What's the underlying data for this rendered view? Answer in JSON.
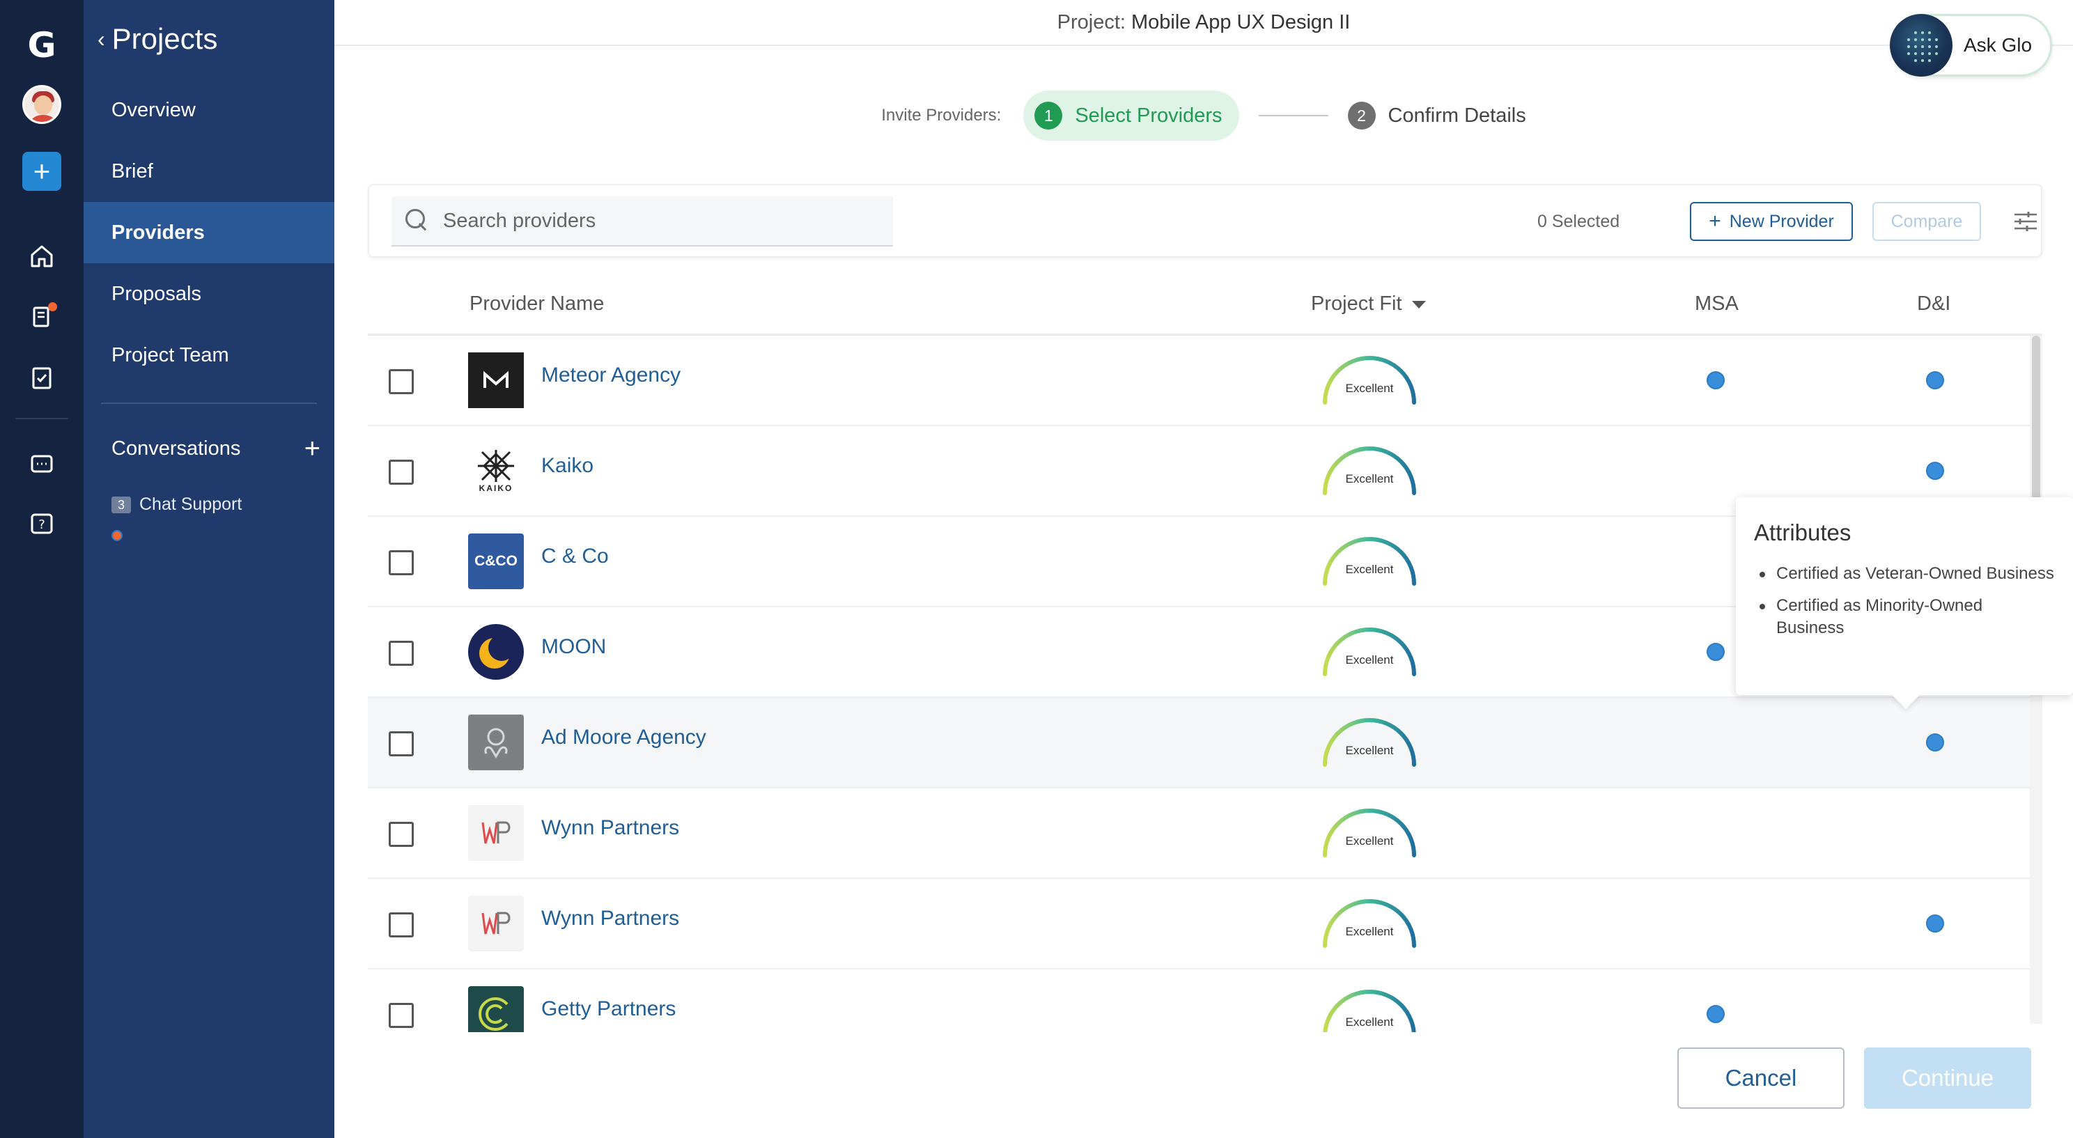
{
  "rail": {
    "logo": "G",
    "icons": [
      "avatar",
      "plus-icon",
      "home-icon",
      "documents-icon",
      "checklist-icon",
      "chat-icon",
      "help-icon"
    ],
    "plus": "+",
    "notification_color": "#f06531"
  },
  "nav": {
    "back_label": "Projects",
    "items": [
      {
        "label": "Overview"
      },
      {
        "label": "Brief"
      },
      {
        "label": "Providers"
      },
      {
        "label": "Proposals"
      },
      {
        "label": "Project Team"
      }
    ],
    "active_index": 2,
    "conversations_label": "Conversations",
    "chat": {
      "badge": "3",
      "label": "Chat Support"
    }
  },
  "header": {
    "project_prefix": "Project:",
    "project_name": "Mobile App UX Design II",
    "ask_glo": "Ask Glo"
  },
  "stepper": {
    "lead": "Invite Providers:",
    "steps": [
      {
        "num": "1",
        "label": "Select Providers",
        "active": true
      },
      {
        "num": "2",
        "label": "Confirm Details",
        "active": false
      }
    ]
  },
  "toolbar": {
    "search_placeholder": "Search providers",
    "selected_count": "0 Selected",
    "new_provider": "New Provider",
    "compare": "Compare"
  },
  "table": {
    "columns": {
      "name": "Provider Name",
      "fit": "Project Fit",
      "msa": "MSA",
      "di": "D&I"
    },
    "rows": [
      {
        "name": "Meteor Agency",
        "fit": "Excellent",
        "msa": true,
        "di": true,
        "logo": "meteor-logo"
      },
      {
        "name": "Kaiko",
        "fit": "Excellent",
        "msa": false,
        "di": true,
        "logo": "kaiko-logo",
        "logo_text": "KAIKO"
      },
      {
        "name": "C & Co",
        "fit": "Excellent",
        "msa": false,
        "di": false,
        "logo": "cco-logo",
        "logo_text": "C&CO"
      },
      {
        "name": "MOON",
        "fit": "Excellent",
        "msa": true,
        "di": false,
        "logo": "moon-logo"
      },
      {
        "name": "Ad Moore Agency",
        "fit": "Excellent",
        "msa": false,
        "di": true,
        "logo": "admoore-logo"
      },
      {
        "name": "Wynn Partners",
        "fit": "Excellent",
        "msa": false,
        "di": false,
        "logo": "wynn-logo"
      },
      {
        "name": "Wynn Partners",
        "fit": "Excellent",
        "msa": false,
        "di": true,
        "logo": "wynn-logo"
      },
      {
        "name": "Getty Partners",
        "fit": "Excellent",
        "msa": true,
        "di": false,
        "logo": "getty-logo"
      }
    ],
    "hover_row": 4
  },
  "tooltip": {
    "title": "Attributes",
    "items": [
      "Certified as Veteran-Owned Business",
      "Certified as Minority-Owned Business"
    ]
  },
  "footer": {
    "cancel": "Cancel",
    "continue": "Continue"
  },
  "colors": {
    "accent": "#1f5e96",
    "rail": "#14233f",
    "nav": "#1f3a6b",
    "nav_active": "#2a5795",
    "success": "#1f9b52",
    "dot": "#3a8ed9"
  }
}
